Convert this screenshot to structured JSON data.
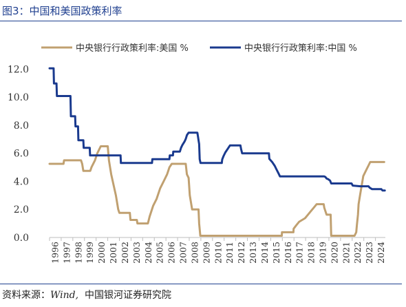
{
  "figure": {
    "title": "图3：中国和美国政策利率",
    "source_prefix": "资料来源：",
    "source_wind": "Wind,",
    "source_org": "中国银河证券研究院"
  },
  "colors": {
    "us": "#c0a070",
    "cn": "#1a3a8e",
    "title": "#1f3f8f",
    "axis": "#bdbdbd"
  },
  "chart_data": {
    "type": "line",
    "title": "",
    "xlabel": "",
    "ylabel": "",
    "ylim": [
      0,
      13
    ],
    "xlim": [
      1996.0,
      2024.85
    ],
    "grid": false,
    "legend_position": "top",
    "yticks": [
      0,
      2,
      4,
      6,
      8,
      10,
      12
    ],
    "ytick_labels": [
      "0.0",
      "2.0",
      "4.0",
      "6.0",
      "8.0",
      "10.0",
      "12.0"
    ],
    "xtick_labels": [
      "1996",
      "1997",
      "1998",
      "1999",
      "2000",
      "2001",
      "2002",
      "2003",
      "2004",
      "2005",
      "2006",
      "2007",
      "2008",
      "2009",
      "2010",
      "2011",
      "2012",
      "2013",
      "2014",
      "2015",
      "2016",
      "2017",
      "2018",
      "2019",
      "2020",
      "2021",
      "2022",
      "2023",
      "2024"
    ],
    "series": [
      {
        "name": "中央银行行政策利率:美国 %",
        "color": "#c0a070",
        "points": [
          [
            1996.0,
            5.25
          ],
          [
            1997.2,
            5.25
          ],
          [
            1997.25,
            5.5
          ],
          [
            1998.7,
            5.5
          ],
          [
            1998.8,
            5.25
          ],
          [
            1998.9,
            4.75
          ],
          [
            1999.5,
            4.75
          ],
          [
            1999.6,
            5.0
          ],
          [
            1999.9,
            5.5
          ],
          [
            2000.1,
            6.0
          ],
          [
            2000.4,
            6.5
          ],
          [
            2001.0,
            6.5
          ],
          [
            2001.1,
            5.5
          ],
          [
            2001.3,
            4.5
          ],
          [
            2001.5,
            3.75
          ],
          [
            2001.7,
            3.0
          ],
          [
            2001.9,
            2.0
          ],
          [
            2002.0,
            1.75
          ],
          [
            2002.9,
            1.75
          ],
          [
            2002.95,
            1.25
          ],
          [
            2003.5,
            1.25
          ],
          [
            2003.55,
            1.0
          ],
          [
            2004.45,
            1.0
          ],
          [
            2004.6,
            1.5
          ],
          [
            2004.9,
            2.25
          ],
          [
            2005.2,
            2.75
          ],
          [
            2005.5,
            3.5
          ],
          [
            2005.8,
            4.0
          ],
          [
            2006.1,
            4.5
          ],
          [
            2006.3,
            5.0
          ],
          [
            2006.5,
            5.25
          ],
          [
            2007.7,
            5.25
          ],
          [
            2007.8,
            4.5
          ],
          [
            2007.95,
            4.25
          ],
          [
            2008.05,
            3.0
          ],
          [
            2008.25,
            2.0
          ],
          [
            2008.8,
            2.0
          ],
          [
            2008.85,
            1.0
          ],
          [
            2008.95,
            0.125
          ],
          [
            2015.95,
            0.125
          ],
          [
            2015.97,
            0.375
          ],
          [
            2016.95,
            0.375
          ],
          [
            2016.97,
            0.625
          ],
          [
            2017.2,
            0.875
          ],
          [
            2017.45,
            1.125
          ],
          [
            2017.95,
            1.375
          ],
          [
            2018.2,
            1.625
          ],
          [
            2018.45,
            1.875
          ],
          [
            2018.7,
            2.125
          ],
          [
            2018.95,
            2.375
          ],
          [
            2019.55,
            2.375
          ],
          [
            2019.6,
            2.125
          ],
          [
            2019.7,
            1.875
          ],
          [
            2019.8,
            1.625
          ],
          [
            2020.15,
            1.625
          ],
          [
            2020.2,
            0.125
          ],
          [
            2022.2,
            0.125
          ],
          [
            2022.35,
            0.375
          ],
          [
            2022.4,
            0.875
          ],
          [
            2022.5,
            1.625
          ],
          [
            2022.55,
            2.375
          ],
          [
            2022.7,
            3.125
          ],
          [
            2022.85,
            3.875
          ],
          [
            2022.95,
            4.375
          ],
          [
            2023.1,
            4.625
          ],
          [
            2023.25,
            4.875
          ],
          [
            2023.4,
            5.125
          ],
          [
            2023.55,
            5.375
          ],
          [
            2024.75,
            5.375
          ]
        ]
      },
      {
        "name": "中央银行行政策利率:中国 %",
        "color": "#1a3a8e",
        "points": [
          [
            1996.0,
            12.06
          ],
          [
            1996.35,
            12.06
          ],
          [
            1996.38,
            10.98
          ],
          [
            1996.6,
            10.98
          ],
          [
            1996.63,
            10.08
          ],
          [
            1997.8,
            10.08
          ],
          [
            1997.83,
            8.64
          ],
          [
            1998.2,
            8.64
          ],
          [
            1998.23,
            7.92
          ],
          [
            1998.45,
            7.92
          ],
          [
            1998.48,
            6.93
          ],
          [
            1998.9,
            6.93
          ],
          [
            1998.93,
            6.39
          ],
          [
            1999.45,
            6.39
          ],
          [
            1999.48,
            5.85
          ],
          [
            2002.1,
            5.85
          ],
          [
            2002.13,
            5.31
          ],
          [
            2004.8,
            5.31
          ],
          [
            2004.83,
            5.58
          ],
          [
            2006.3,
            5.58
          ],
          [
            2006.33,
            5.85
          ],
          [
            2006.6,
            5.85
          ],
          [
            2006.63,
            6.12
          ],
          [
            2007.2,
            6.12
          ],
          [
            2007.3,
            6.39
          ],
          [
            2007.4,
            6.57
          ],
          [
            2007.6,
            6.84
          ],
          [
            2007.7,
            7.02
          ],
          [
            2007.8,
            7.29
          ],
          [
            2007.95,
            7.47
          ],
          [
            2008.7,
            7.47
          ],
          [
            2008.75,
            7.2
          ],
          [
            2008.8,
            6.93
          ],
          [
            2008.85,
            6.66
          ],
          [
            2008.9,
            5.58
          ],
          [
            2008.97,
            5.31
          ],
          [
            2010.8,
            5.31
          ],
          [
            2010.83,
            5.56
          ],
          [
            2010.95,
            5.81
          ],
          [
            2011.1,
            6.06
          ],
          [
            2011.3,
            6.31
          ],
          [
            2011.5,
            6.56
          ],
          [
            2012.4,
            6.56
          ],
          [
            2012.45,
            6.31
          ],
          [
            2012.55,
            6.0
          ],
          [
            2014.85,
            6.0
          ],
          [
            2014.88,
            5.6
          ],
          [
            2015.15,
            5.35
          ],
          [
            2015.35,
            5.1
          ],
          [
            2015.5,
            4.85
          ],
          [
            2015.65,
            4.6
          ],
          [
            2015.8,
            4.35
          ],
          [
            2019.6,
            4.35
          ],
          [
            2019.7,
            4.31
          ],
          [
            2019.8,
            4.2
          ],
          [
            2019.95,
            4.15
          ],
          [
            2020.1,
            4.05
          ],
          [
            2020.2,
            3.85
          ],
          [
            2021.95,
            3.85
          ],
          [
            2022.05,
            3.7
          ],
          [
            2022.7,
            3.65
          ],
          [
            2023.0,
            3.65
          ],
          [
            2023.4,
            3.65
          ],
          [
            2023.5,
            3.55
          ],
          [
            2023.7,
            3.45
          ],
          [
            2024.5,
            3.45
          ],
          [
            2024.6,
            3.35
          ],
          [
            2024.8,
            3.35
          ]
        ]
      }
    ]
  }
}
